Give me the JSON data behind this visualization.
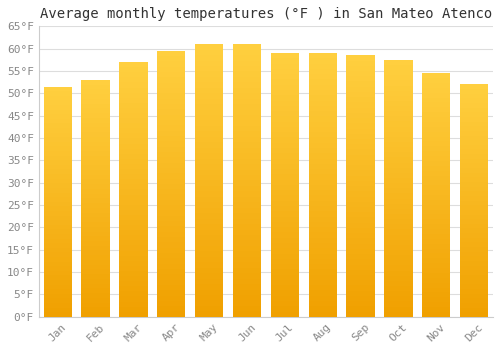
{
  "title": "Average monthly temperatures (°F ) in San Mateo Atenco",
  "months": [
    "Jan",
    "Feb",
    "Mar",
    "Apr",
    "May",
    "Jun",
    "Jul",
    "Aug",
    "Sep",
    "Oct",
    "Nov",
    "Dec"
  ],
  "values": [
    51.5,
    53.0,
    57.0,
    59.5,
    61.0,
    61.0,
    59.0,
    59.0,
    58.5,
    57.5,
    54.5,
    52.0
  ],
  "bar_color_top": "#FFD040",
  "bar_color_bottom": "#F0A000",
  "background_color": "#FFFFFF",
  "grid_color": "#DDDDDD",
  "ylim": [
    0,
    65
  ],
  "ytick_step": 5,
  "title_fontsize": 10,
  "tick_fontsize": 8,
  "tick_color": "#888888",
  "spine_color": "#CCCCCC",
  "font_family": "monospace"
}
